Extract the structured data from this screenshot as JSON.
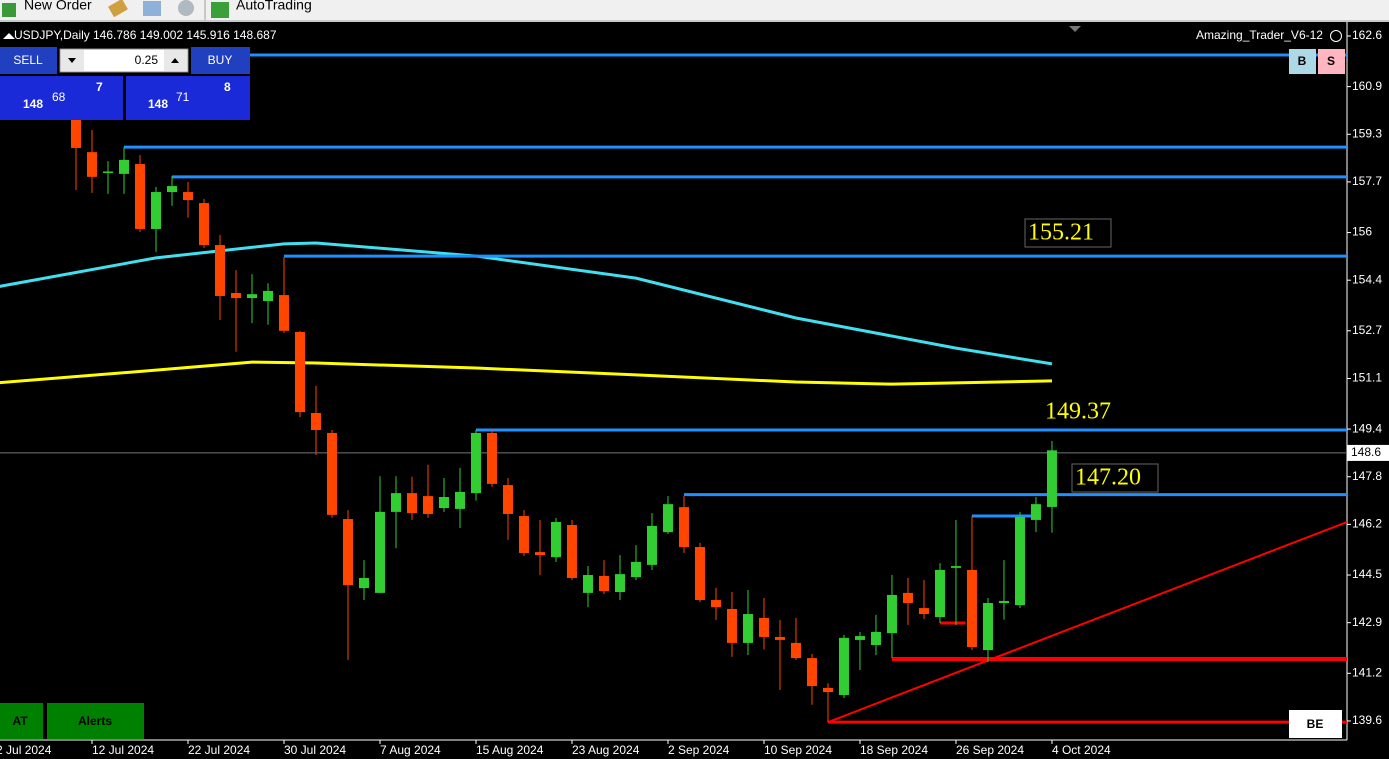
{
  "toolbar": {
    "new_order": "New Order",
    "autotrading": "AutoTrading"
  },
  "panel": {
    "sell": "SELL",
    "lot": "0.25",
    "buy": "BUY",
    "bid_big": "148",
    "bid_mid": "68",
    "bid_small": "7",
    "ask_big": "148",
    "ask_mid": "71",
    "ask_small": "8"
  },
  "buttons": {
    "b": "B",
    "s": "S",
    "at": "AT",
    "alerts": "Alerts",
    "be": "BE"
  },
  "indicator_name": "Amazing_Trader_V6-12",
  "chart_data": {
    "type": "candlestick",
    "symbol": "USDJPY,Daily",
    "ohlc_header": "146.786 149.002 145.916 148.687",
    "up_color": "#32cd32",
    "down_color": "#ff4500",
    "categories": [
      "2 Jul 2024",
      null,
      null,
      null,
      null,
      null,
      "12 Jul 2024",
      null,
      null,
      null,
      null,
      null,
      "22 Jul 2024",
      null,
      null,
      null,
      null,
      null,
      "30 Jul 2024",
      null,
      null,
      null,
      null,
      null,
      "7 Aug 2024",
      null,
      null,
      null,
      null,
      null,
      "15 Aug 2024",
      null,
      null,
      null,
      null,
      null,
      "23 Aug 2024",
      null,
      null,
      null,
      null,
      null,
      "2 Sep 2024",
      null,
      null,
      null,
      null,
      null,
      "10 Sep 2024",
      null,
      null,
      null,
      null,
      null,
      "18 Sep 2024",
      null,
      null,
      null,
      null,
      null,
      "26 Sep 2024",
      null,
      null,
      null,
      null,
      null,
      "4 Oct 2024"
    ],
    "open": [
      null,
      null,
      null,
      null,
      null,
      159.78,
      158.7,
      158.0,
      157.97,
      158.3,
      156.12,
      157.36,
      157.36,
      156.99,
      155.58,
      153.97,
      153.8,
      153.7,
      153.9,
      152.66,
      149.94,
      149.27,
      146.38,
      144.06,
      143.9,
      146.62,
      147.25,
      147.15,
      146.75,
      146.72,
      147.25,
      149.27,
      147.52,
      146.48,
      145.27,
      145.1,
      146.18,
      143.9,
      144.47,
      143.93,
      144.43,
      144.84,
      145.94,
      146.78,
      145.44,
      143.66,
      143.36,
      142.22,
      143.06,
      142.42,
      142.22,
      141.71,
      140.71,
      140.47,
      142.32,
      142.15,
      142.55,
      143.9,
      143.39,
      143.09,
      144.74,
      144.67,
      141.98,
      143.56,
      143.49,
      146.35,
      146.786
    ],
    "high": [
      null,
      null,
      null,
      null,
      null,
      160.1,
      159.44,
      158.4,
      158.87,
      158.6,
      157.53,
      157.9,
      157.7,
      157.13,
      155.92,
      154.74,
      154.6,
      154.3,
      155.18,
      152.7,
      150.85,
      149.37,
      146.68,
      145.0,
      147.82,
      147.82,
      147.8,
      148.2,
      147.76,
      148.1,
      149.37,
      149.37,
      147.76,
      146.68,
      146.35,
      146.42,
      146.35,
      144.8,
      145.0,
      145.17,
      145.5,
      146.58,
      147.15,
      147.15,
      145.58,
      144.07,
      143.93,
      144.0,
      143.73,
      142.99,
      143.06,
      141.85,
      140.87,
      142.49,
      142.59,
      143.16,
      144.5,
      144.4,
      144.33,
      144.9,
      146.35,
      146.48,
      143.73,
      145.0,
      146.62,
      147.12,
      149.002
    ],
    "low": [
      null,
      null,
      null,
      null,
      null,
      157.43,
      157.33,
      157.3,
      157.3,
      156.02,
      155.35,
      156.9,
      156.5,
      155.48,
      153.06,
      152.0,
      152.96,
      152.9,
      152.63,
      149.8,
      148.53,
      146.42,
      141.65,
      143.66,
      143.9,
      145.4,
      146.35,
      146.42,
      146.62,
      146.08,
      147.0,
      147.46,
      145.68,
      145.14,
      144.5,
      144.94,
      144.33,
      143.42,
      143.86,
      143.66,
      144.33,
      144.67,
      145.88,
      145.24,
      143.59,
      142.99,
      141.75,
      141.81,
      142.0,
      140.64,
      141.65,
      140.14,
      139.56,
      140.37,
      141.31,
      141.81,
      141.71,
      142.82,
      143.02,
      142.89,
      142.82,
      141.98,
      141.58,
      143.0,
      143.39,
      145.94,
      145.916
    ],
    "close": [
      null,
      null,
      null,
      null,
      null,
      158.84,
      157.87,
      158.05,
      158.44,
      156.12,
      157.36,
      157.56,
      157.09,
      155.58,
      153.87,
      153.8,
      153.93,
      154.04,
      152.7,
      149.97,
      149.37,
      146.52,
      144.16,
      144.4,
      146.62,
      147.25,
      146.58,
      146.55,
      147.12,
      147.29,
      149.27,
      147.56,
      146.55,
      145.24,
      145.17,
      146.28,
      144.4,
      144.5,
      143.96,
      144.53,
      144.94,
      146.15,
      146.88,
      145.44,
      143.66,
      143.42,
      142.22,
      143.19,
      142.42,
      142.32,
      141.71,
      140.77,
      140.57,
      142.39,
      142.45,
      142.59,
      143.83,
      143.56,
      143.19,
      144.67,
      144.8,
      142.08,
      143.56,
      143.63,
      146.45,
      146.88,
      148.687
    ],
    "xlim": [
      0.25,
      84.44
    ],
    "ylim": [
      138.96,
      163.07
    ],
    "yticks": [
      162.6,
      160.9,
      159.3,
      157.7,
      156.0,
      154.4,
      152.7,
      151.1,
      149.4,
      147.8,
      146.2,
      144.5,
      142.9,
      141.2,
      139.6
    ],
    "current_price": 148.6,
    "level_color": "#1e90ff",
    "levels": [
      {
        "price": 161.96,
        "from": 15.875
      },
      {
        "price": 158.87,
        "from": 8
      },
      {
        "price": 157.87,
        "from": 11
      },
      {
        "price": 155.21,
        "from": 18,
        "label": "155.21"
      },
      {
        "price": 149.37,
        "from": 30,
        "label": "149.37"
      },
      {
        "price": 147.2,
        "from": 43,
        "label": "147.20"
      },
      {
        "price": 146.48,
        "from": 61,
        "to": 65
      }
    ],
    "support_color": "#ff0000",
    "supports": [
      {
        "price": 141.68,
        "from": 56
      },
      {
        "price": 139.56,
        "from": 52
      },
      {
        "price": 142.89,
        "from": 59,
        "to": 60.6
      }
    ],
    "trendline": {
      "x": [
        52,
        84.44
      ],
      "values": [
        139.56,
        146.28
      ]
    },
    "ma": [
      {
        "color": "#40e0f0",
        "x": [
          0,
          10,
          18,
          20,
          30,
          40,
          50,
          60,
          66
        ],
        "values": [
          154.17,
          155.15,
          155.62,
          155.65,
          155.21,
          154.47,
          153.13,
          152.12,
          151.59
        ]
      },
      {
        "color": "#ffff00",
        "x": [
          0,
          10,
          16,
          20,
          30,
          40,
          50,
          56,
          60,
          66
        ],
        "values": [
          150.95,
          151.38,
          151.65,
          151.62,
          151.45,
          151.22,
          150.98,
          150.91,
          150.95,
          151.02
        ]
      }
    ]
  }
}
